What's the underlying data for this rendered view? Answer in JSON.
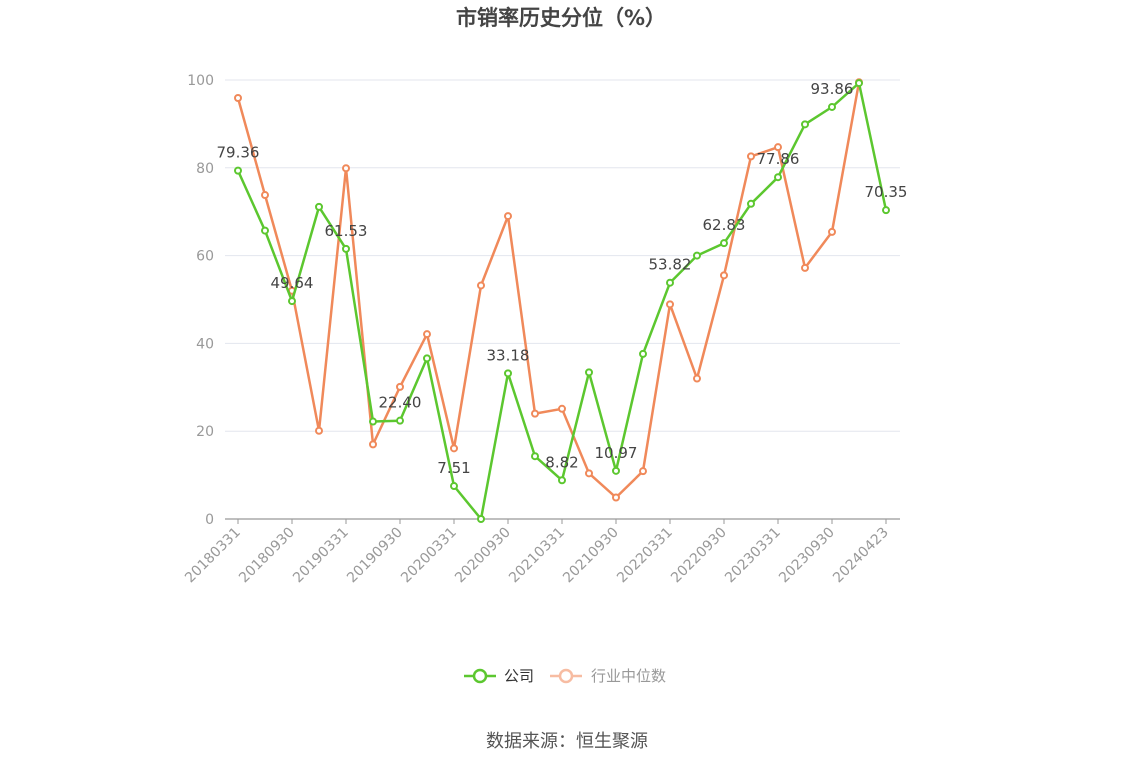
{
  "chart_data": {
    "type": "line",
    "title": "市销率历史分位（%）",
    "source": "数据来源：恒生聚源",
    "ylim": [
      0,
      100
    ],
    "yticks": [
      0,
      20,
      40,
      60,
      80,
      100
    ],
    "grid": true,
    "legend_position": "bottom",
    "x": [
      "20180331",
      "20180630",
      "20180930",
      "20181231",
      "20190331",
      "20190630",
      "20190930",
      "20191231",
      "20200331",
      "20200630",
      "20200930",
      "20201231",
      "20210331",
      "20210630",
      "20210930",
      "20211231",
      "20220331",
      "20220630",
      "20220930",
      "20221231",
      "20230331",
      "20230630",
      "20230930",
      "20231231",
      "20240423"
    ],
    "x_tick_labels": [
      "20180331",
      "20180930",
      "20190331",
      "20190930",
      "20200331",
      "20200930",
      "20210331",
      "20210930",
      "20220331",
      "20220930",
      "20230331",
      "20230930",
      "20240423"
    ],
    "series": [
      {
        "name": "公司",
        "color": "#5cc72f",
        "values": [
          79.36,
          65.7,
          49.64,
          71.1,
          61.53,
          22.2,
          22.4,
          36.6,
          7.51,
          0.0,
          33.18,
          14.3,
          8.82,
          33.4,
          10.97,
          37.6,
          53.82,
          60.0,
          62.83,
          71.8,
          77.86,
          89.9,
          93.86,
          99.3,
          70.35
        ],
        "labels": [
          "79.36",
          "",
          "49.64",
          "",
          "61.53",
          "",
          "22.40",
          "",
          "7.51",
          "",
          "33.18",
          "",
          "8.82",
          "",
          "10.97",
          "",
          "53.82",
          "",
          "62.83",
          "",
          "77.86",
          "",
          "93.86",
          "",
          "70.35"
        ]
      },
      {
        "name": "行业中位数",
        "color": "#f0895a",
        "values": [
          95.9,
          73.8,
          52.0,
          20.1,
          79.9,
          17.0,
          30.1,
          42.1,
          16.1,
          53.2,
          69.0,
          24.0,
          25.1,
          10.4,
          4.9,
          10.9,
          48.9,
          32.0,
          55.5,
          82.6,
          84.7,
          57.2,
          65.4,
          99.5,
          null
        ]
      }
    ]
  }
}
